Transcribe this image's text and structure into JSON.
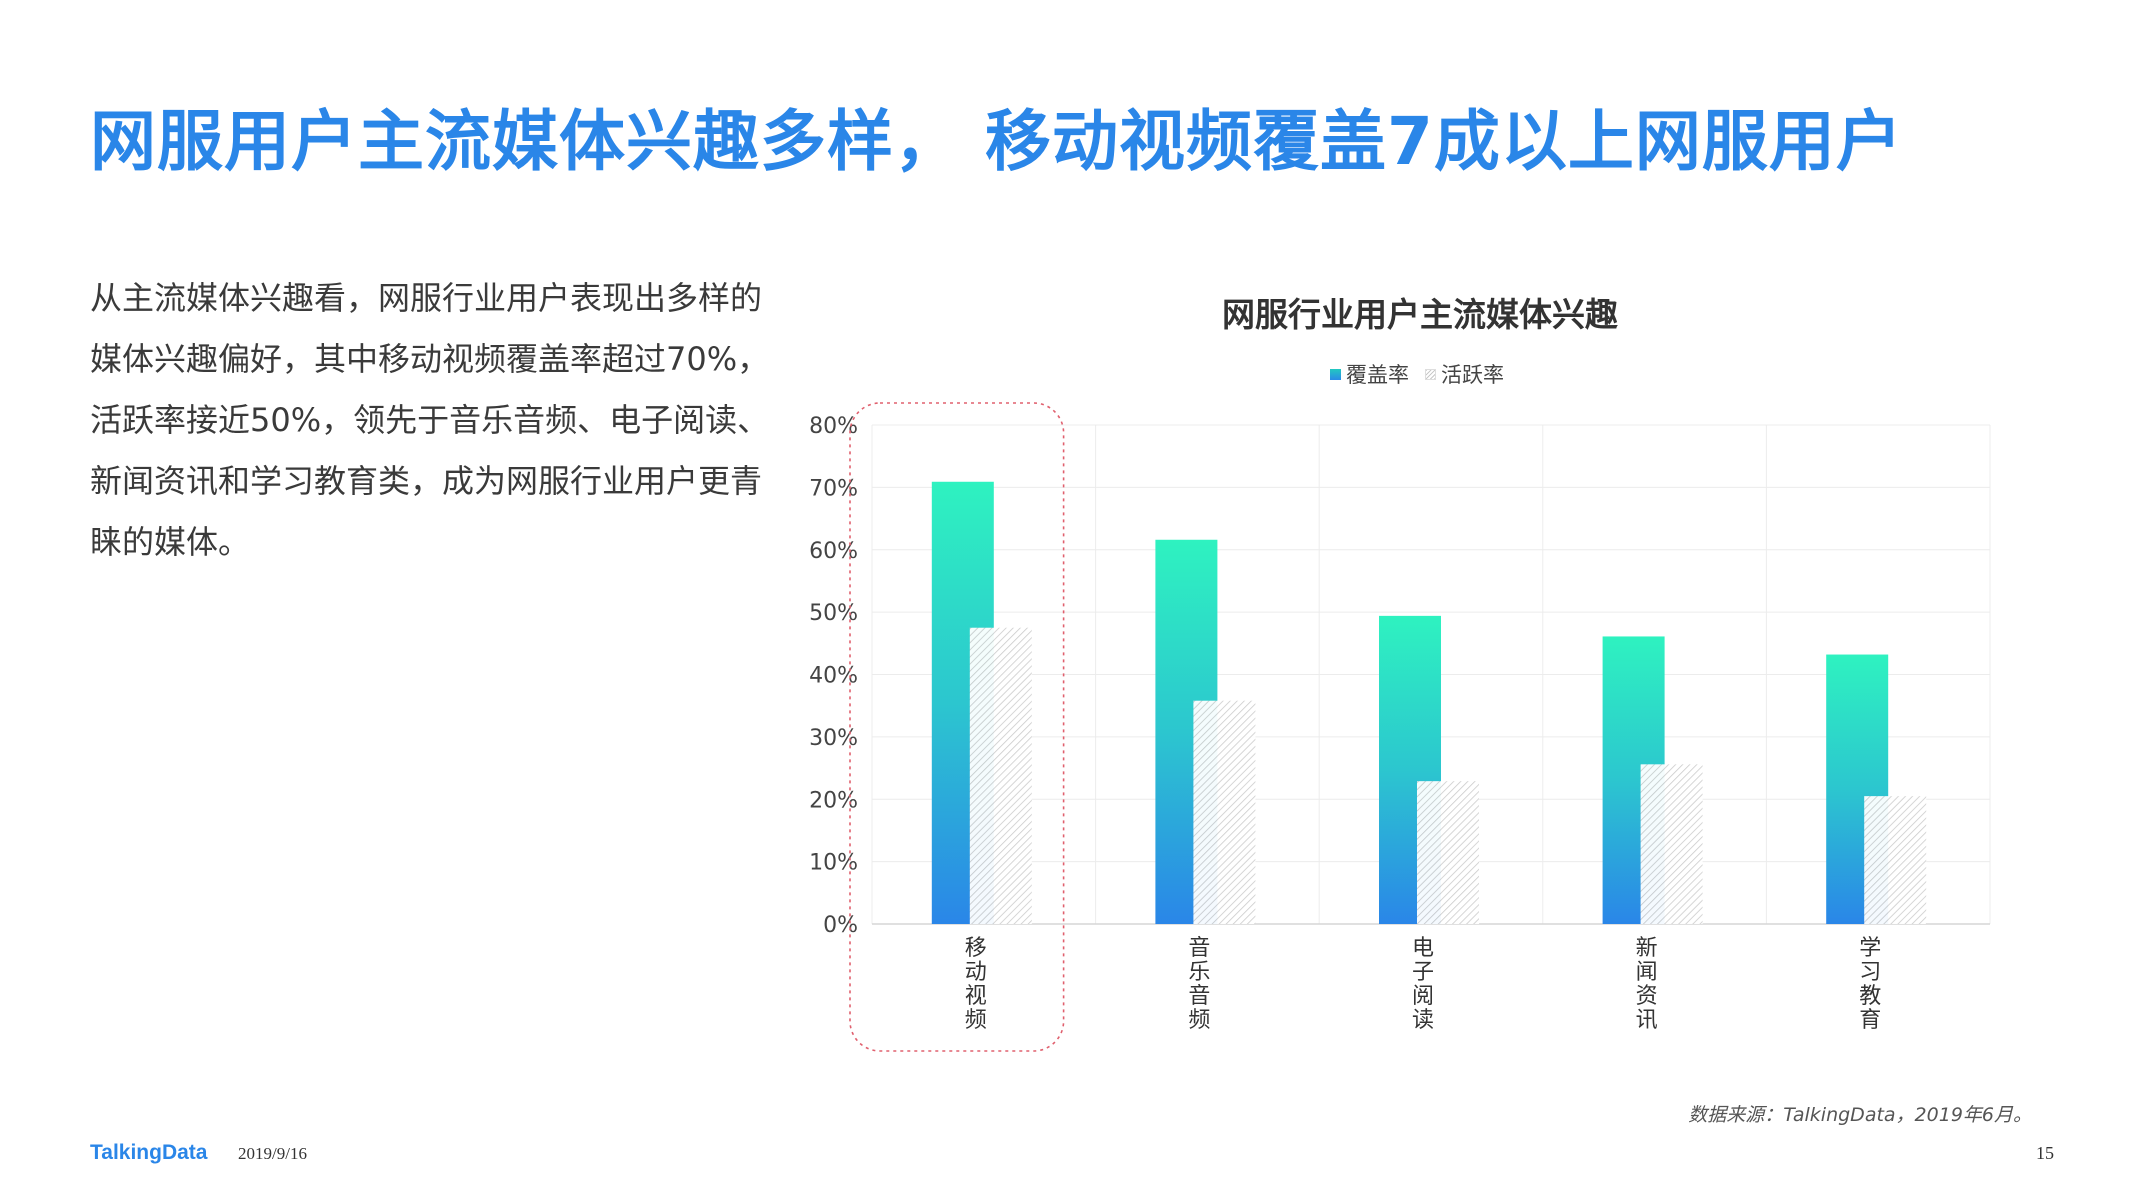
{
  "slide": {
    "headline": "网服用户主流媒体兴趣多样， 移动视频覆盖7成以上网服用户",
    "body": "从主流媒体兴趣看，网服行业用户表现出多样的媒体兴趣偏好，其中移动视频覆盖率超过70%，活跃率接近50%，领先于音乐音频、电子阅读、新闻资讯和学习教育类，成为网服行业用户更青睐的媒体。",
    "source": "数据来源：TalkingData，2019年6月。",
    "footer_logo": "TalkingData",
    "footer_date": "2019/9/16",
    "page_number": "15"
  },
  "colors": {
    "headline": "#2a86e8",
    "coverage_top": "#2ef2c0",
    "coverage_bottom": "#2a86e8",
    "activity_hatch": "#c9c9c9",
    "highlight_box": "#e0606e",
    "grid": "#ececec"
  },
  "chart_data": {
    "type": "bar",
    "title": "网服行业用户主流媒体兴趣",
    "categories": [
      "移动视频",
      "音乐音频",
      "电子阅读",
      "新闻资讯",
      "学习教育"
    ],
    "series": [
      {
        "name": "覆盖率",
        "values": [
          70.9,
          61.6,
          49.4,
          46.1,
          43.2
        ]
      },
      {
        "name": "活跃率",
        "values": [
          47.5,
          35.8,
          22.9,
          25.6,
          20.5
        ]
      }
    ],
    "ylim": [
      0,
      80
    ],
    "yticks": [
      "0%",
      "10%",
      "20%",
      "30%",
      "40%",
      "50%",
      "60%",
      "70%",
      "80%"
    ],
    "xlabel": "",
    "ylabel": "",
    "legend": "top-center",
    "grid": true,
    "highlighted_category": "移动视频"
  }
}
